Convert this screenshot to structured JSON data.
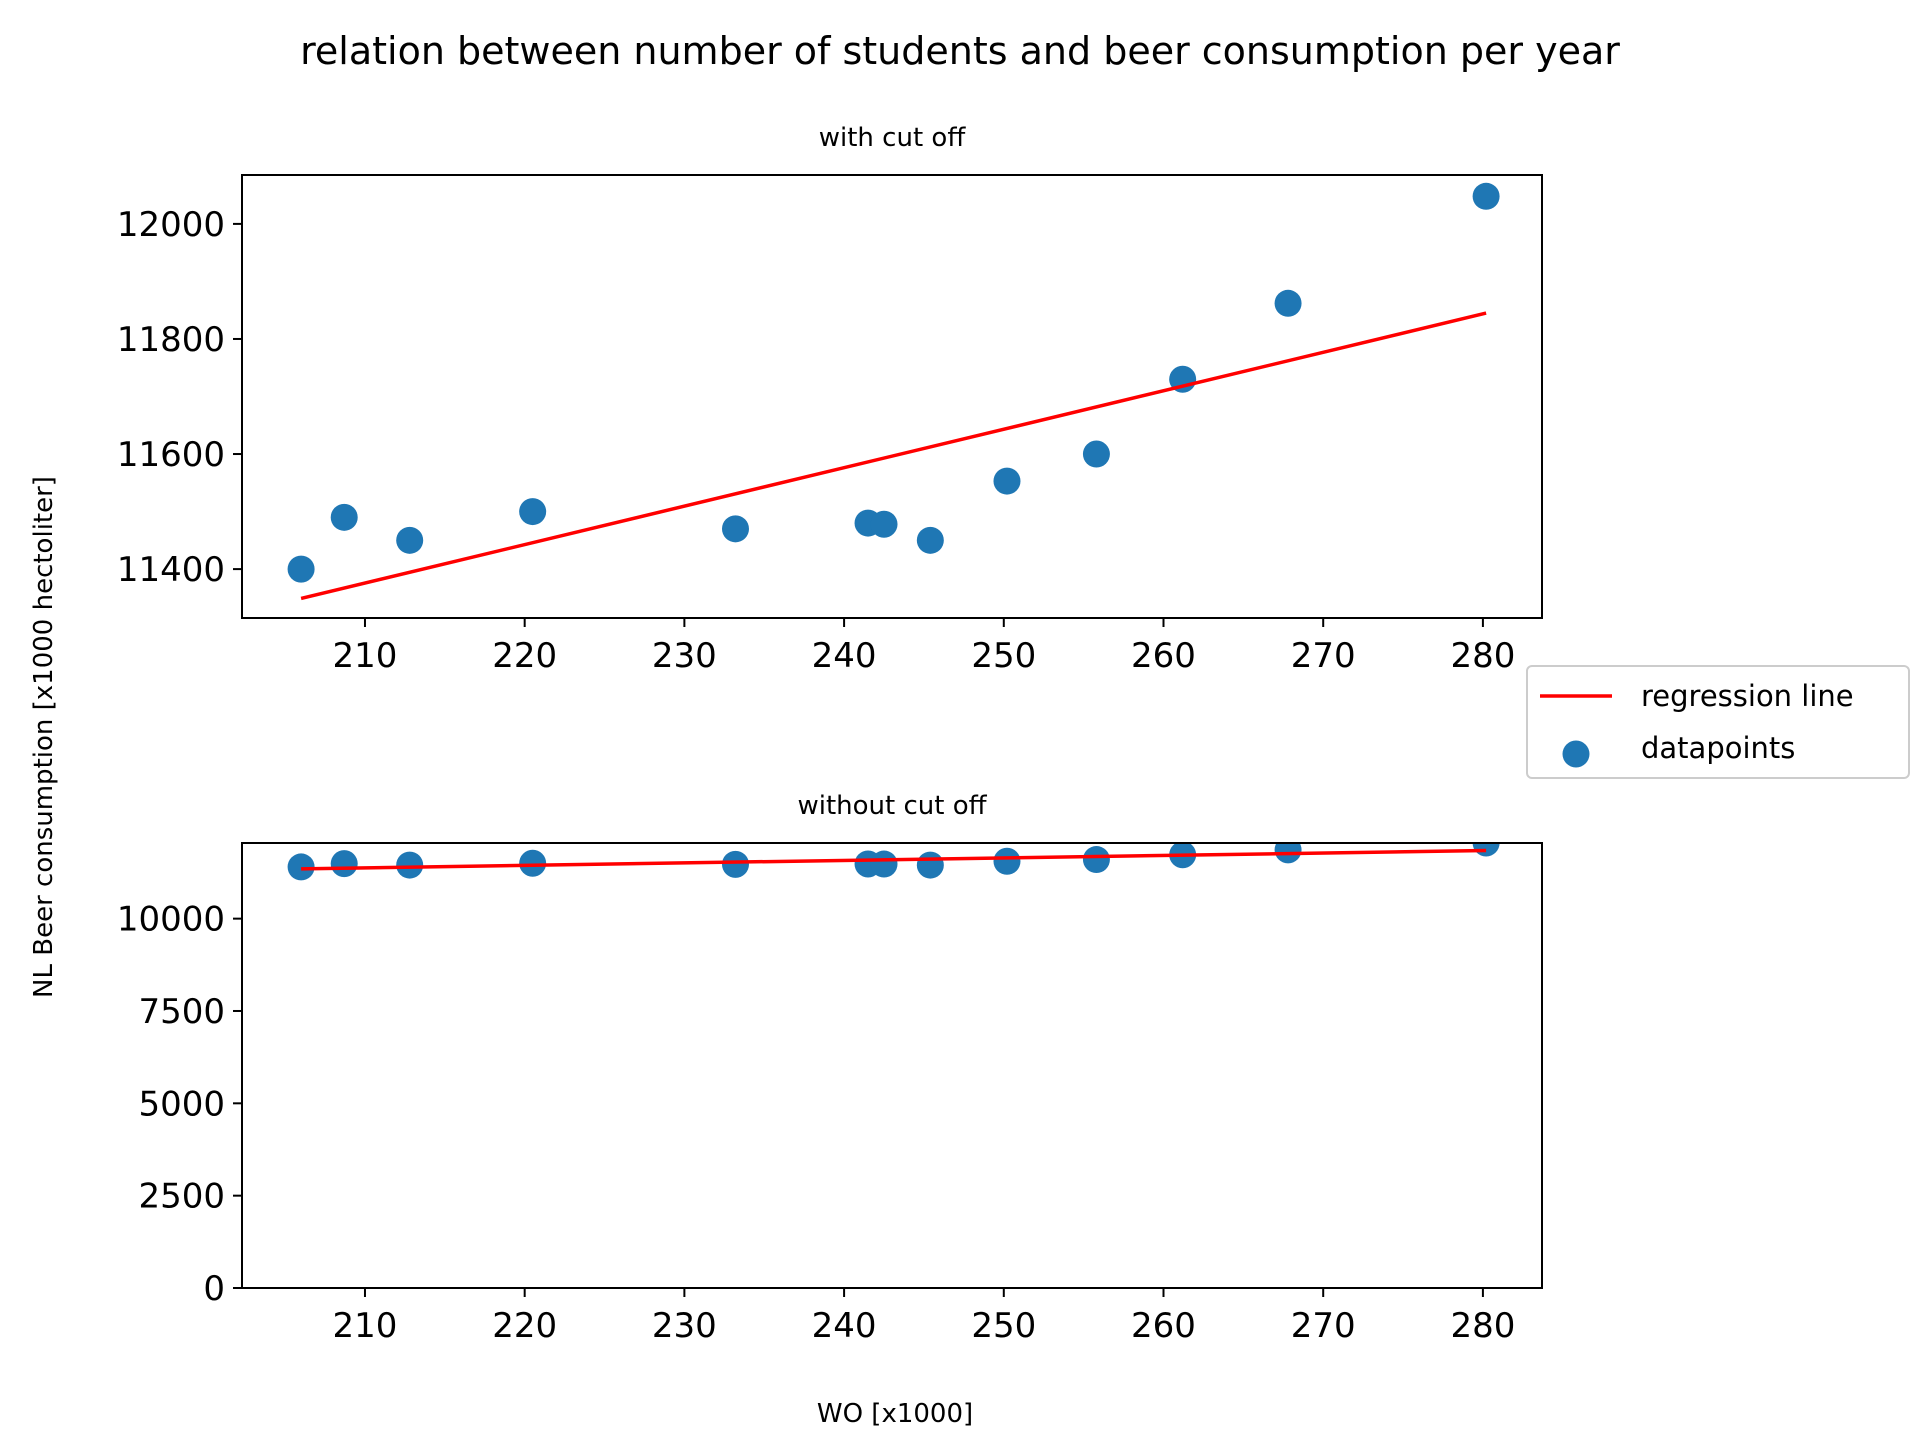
{
  "figure": {
    "title": "relation between number of students and beer consumption per year",
    "ylabel": "NL Beer consumption [x1000 hectoliter]",
    "xlabel": "WO [x1000]"
  },
  "legend": {
    "placement": "right, between subplots",
    "entries": [
      {
        "label": "regression line",
        "kind": "line",
        "color": "#ff0000"
      },
      {
        "label": "datapoints",
        "kind": "marker",
        "color": "#1f77b4"
      }
    ]
  },
  "chart_data": [
    {
      "type": "scatter",
      "title": "with cut off",
      "xlim": [
        202.3,
        283.7
      ],
      "ylim": [
        11315,
        12085
      ],
      "x_ticks": [
        210,
        220,
        230,
        240,
        250,
        260,
        270,
        280
      ],
      "y_ticks": [
        11400,
        11600,
        11800,
        12000
      ],
      "grid": false,
      "series": [
        {
          "name": "datapoints",
          "color": "#1f77b4",
          "x": [
            206.0,
            208.7,
            212.8,
            220.5,
            233.2,
            241.5,
            242.5,
            245.4,
            250.2,
            255.8,
            261.2,
            267.8,
            280.2
          ],
          "y": [
            11400,
            11490,
            11450,
            11500,
            11470,
            11480,
            11478,
            11450,
            11553,
            11600,
            11730,
            11862,
            12048
          ]
        },
        {
          "name": "regression line",
          "color": "#ff0000",
          "x": [
            206.0,
            280.2
          ],
          "y": [
            11349,
            11845
          ]
        }
      ]
    },
    {
      "type": "scatter",
      "title": "without cut off",
      "xlim": [
        202.3,
        283.7
      ],
      "ylim": [
        0,
        12048
      ],
      "x_ticks": [
        210,
        220,
        230,
        240,
        250,
        260,
        270,
        280
      ],
      "y_ticks": [
        0,
        2500,
        5000,
        7500,
        10000
      ],
      "grid": false,
      "series": [
        {
          "name": "datapoints",
          "color": "#1f77b4",
          "x": [
            206.0,
            208.7,
            212.8,
            220.5,
            233.2,
            241.5,
            242.5,
            245.4,
            250.2,
            255.8,
            261.2,
            267.8,
            280.2
          ],
          "y": [
            11400,
            11490,
            11450,
            11500,
            11470,
            11480,
            11478,
            11450,
            11553,
            11600,
            11730,
            11862,
            12048
          ]
        },
        {
          "name": "regression line",
          "color": "#ff0000",
          "x": [
            206.0,
            280.2
          ],
          "y": [
            11349,
            11845
          ]
        }
      ]
    }
  ]
}
